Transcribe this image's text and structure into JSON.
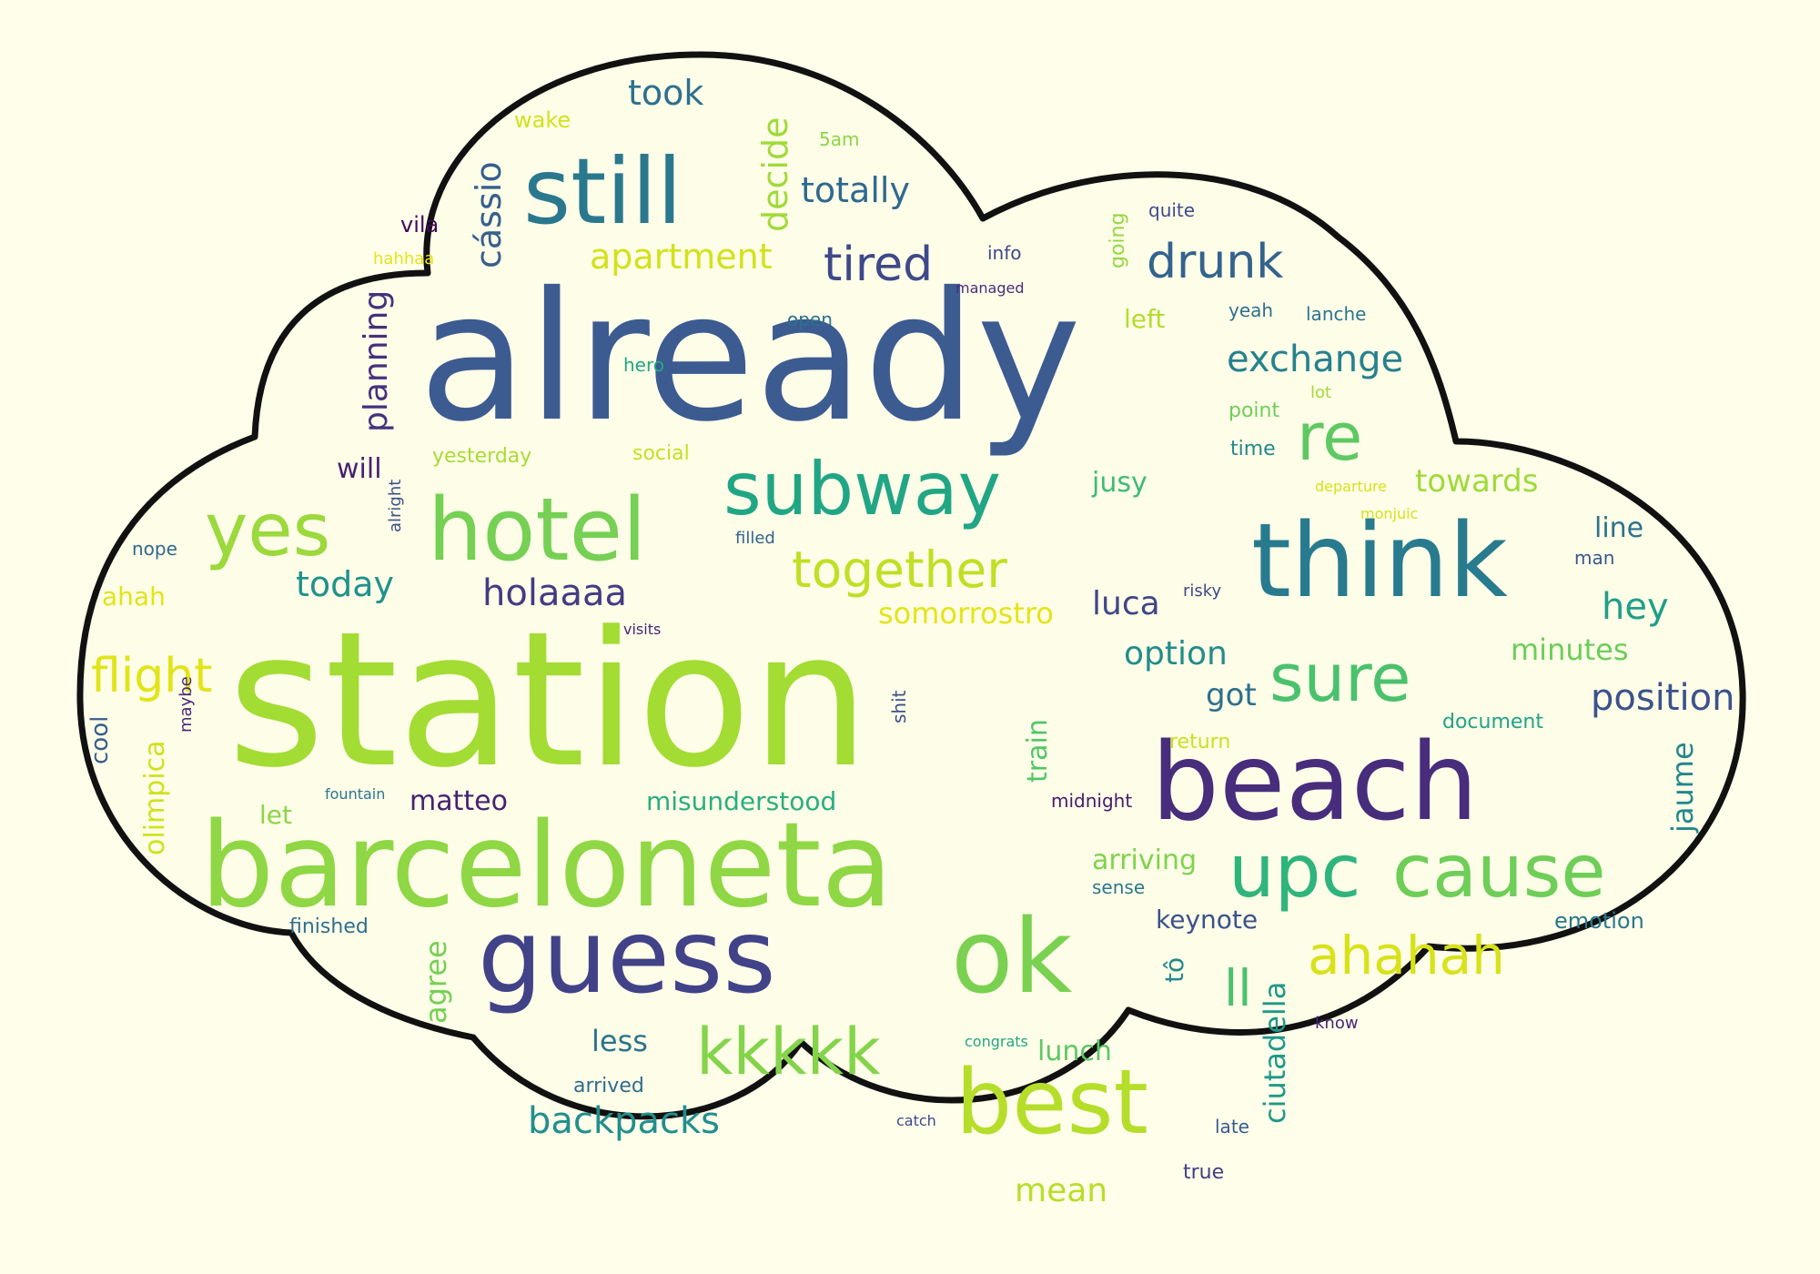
{
  "colors": {
    "background": "#fefeea",
    "cloud_fill": "#fdfde8",
    "outline": "#111111"
  },
  "words": [
    {
      "text": "station",
      "color": "#a3dc33"
    },
    {
      "text": "already",
      "color": "#3c5b91"
    },
    {
      "text": "barceloneta",
      "color": "#8fd744"
    },
    {
      "text": "beach",
      "color": "#472d7b"
    },
    {
      "text": "think",
      "color": "#287b8e"
    },
    {
      "text": "guess",
      "color": "#414287"
    },
    {
      "text": "ok",
      "color": "#7ad151"
    },
    {
      "text": "still",
      "color": "#2a788e"
    },
    {
      "text": "hotel",
      "color": "#75d054"
    },
    {
      "text": "best",
      "color": "#b5de2b"
    },
    {
      "text": "cause",
      "color": "#6ece58"
    },
    {
      "text": "subway",
      "color": "#21a685"
    },
    {
      "text": "upc",
      "color": "#2fb47c"
    },
    {
      "text": "yes",
      "color": "#9bd93c"
    },
    {
      "text": "kkkkk",
      "color": "#84d44b"
    },
    {
      "text": "sure",
      "color": "#4ac16d"
    },
    {
      "text": "re",
      "color": "#5ec962"
    },
    {
      "text": "ahahah",
      "color": "#d8e219"
    },
    {
      "text": "together",
      "color": "#c0df25"
    },
    {
      "text": "ll",
      "color": "#4ac16d"
    },
    {
      "text": "drunk",
      "color": "#33638d"
    },
    {
      "text": "tired",
      "color": "#3e4989"
    },
    {
      "text": "flight",
      "color": "#e2e418"
    },
    {
      "text": "exchange",
      "color": "#26818e"
    },
    {
      "text": "backpacks",
      "color": "#218f8d"
    },
    {
      "text": "position",
      "color": "#3b528b"
    },
    {
      "text": "holaaaa",
      "color": "#443b84"
    },
    {
      "text": "apartment",
      "color": "#d2e21b"
    },
    {
      "text": "today",
      "color": "#20928c"
    },
    {
      "text": "totally",
      "color": "#30698e"
    },
    {
      "text": "took",
      "color": "#2d708e"
    },
    {
      "text": "hey",
      "color": "#1f9e89"
    },
    {
      "text": "decide",
      "color": "#a0da39"
    },
    {
      "text": "cássio",
      "color": "#355f8d"
    },
    {
      "text": "planning",
      "color": "#46307e"
    },
    {
      "text": "option",
      "color": "#228c8d"
    },
    {
      "text": "towards",
      "color": "#9fda3a"
    },
    {
      "text": "minutes",
      "color": "#6ccd5a"
    },
    {
      "text": "somorrostro",
      "color": "#e5e419"
    },
    {
      "text": "luca",
      "color": "#3f4788"
    },
    {
      "text": "mean",
      "color": "#b8de29"
    },
    {
      "text": "got",
      "color": "#2e6f8e"
    },
    {
      "text": "jaume",
      "color": "#24878e"
    },
    {
      "text": "ciutadella",
      "color": "#1f988b"
    },
    {
      "text": "matteo",
      "color": "#482173"
    },
    {
      "text": "misunderstood",
      "color": "#28ae80"
    },
    {
      "text": "arriving",
      "color": "#7fd34e"
    },
    {
      "text": "keynote",
      "color": "#3b528b"
    },
    {
      "text": "lunch",
      "color": "#5cc863"
    },
    {
      "text": "less",
      "color": "#2c738e"
    },
    {
      "text": "olimpica",
      "color": "#d0e11c"
    },
    {
      "text": "agree",
      "color": "#75d054"
    },
    {
      "text": "train",
      "color": "#52c569"
    },
    {
      "text": "line",
      "color": "#2c728e"
    },
    {
      "text": "will",
      "color": "#481f70"
    },
    {
      "text": "jusy",
      "color": "#3dbc74"
    },
    {
      "text": "wake",
      "color": "#d2e21b"
    },
    {
      "text": "vila",
      "color": "#46085c"
    },
    {
      "text": "left",
      "color": "#b2dd2d"
    },
    {
      "text": "let",
      "color": "#8bd646"
    },
    {
      "text": "tô",
      "color": "#23898e"
    },
    {
      "text": "ahah",
      "color": "#e2e418"
    },
    {
      "text": "cool",
      "color": "#365d8d"
    },
    {
      "text": "emotion",
      "color": "#2a788e"
    },
    {
      "text": "yesterday",
      "color": "#a8db34"
    },
    {
      "text": "social",
      "color": "#c5e021"
    },
    {
      "text": "point",
      "color": "#6ece58"
    },
    {
      "text": "time",
      "color": "#23888e"
    },
    {
      "text": "man",
      "color": "#38588c"
    },
    {
      "text": "return",
      "color": "#cae11f"
    },
    {
      "text": "document",
      "color": "#20a486"
    },
    {
      "text": "finished",
      "color": "#2d708e"
    },
    {
      "text": "arrived",
      "color": "#2e6e8e"
    },
    {
      "text": "late",
      "color": "#365c8d"
    },
    {
      "text": "true",
      "color": "#433e85"
    },
    {
      "text": "sense",
      "color": "#2a788e"
    },
    {
      "text": "5am",
      "color": "#8bd646"
    },
    {
      "text": "info",
      "color": "#3f4889"
    },
    {
      "text": "going",
      "color": "#95d840"
    },
    {
      "text": "quite",
      "color": "#3e4a89"
    },
    {
      "text": "yeah",
      "color": "#2d708e"
    },
    {
      "text": "lanche",
      "color": "#2a768e"
    },
    {
      "text": "hero",
      "color": "#22a884"
    },
    {
      "text": "open",
      "color": "#2c728e"
    },
    {
      "text": "managed",
      "color": "#472d7b"
    },
    {
      "text": "hahhaa",
      "color": "#e5e419"
    },
    {
      "text": "lot",
      "color": "#a2da37"
    },
    {
      "text": "departure",
      "color": "#d8e219"
    },
    {
      "text": "monjuic",
      "color": "#d5e21a"
    },
    {
      "text": "nope",
      "color": "#31688e"
    },
    {
      "text": "alright",
      "color": "#3c4f8a"
    },
    {
      "text": "filled",
      "color": "#33638d"
    },
    {
      "text": "risky",
      "color": "#3f4788"
    },
    {
      "text": "visits",
      "color": "#482475"
    },
    {
      "text": "maybe",
      "color": "#482878"
    },
    {
      "text": "shit",
      "color": "#3b528b"
    },
    {
      "text": "fountain",
      "color": "#2a768e"
    },
    {
      "text": "midnight",
      "color": "#481b6d"
    },
    {
      "text": "congrats",
      "color": "#22a785"
    },
    {
      "text": "catch",
      "color": "#3e4989"
    },
    {
      "text": "know",
      "color": "#482576"
    }
  ]
}
